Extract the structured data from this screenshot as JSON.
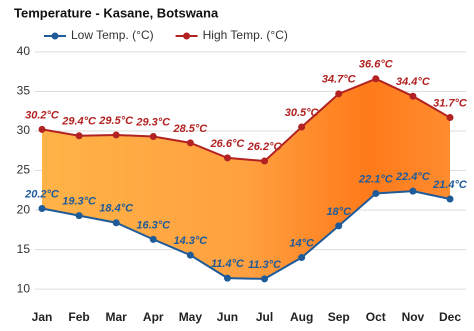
{
  "chart_data": {
    "type": "range-line",
    "title": "Temperature - Kasane, Botswana",
    "categories": [
      "Jan",
      "Feb",
      "Mar",
      "Apr",
      "May",
      "Jun",
      "Jul",
      "Aug",
      "Sep",
      "Oct",
      "Nov",
      "Dec"
    ],
    "series": [
      {
        "name": "Low Temp. (°C)",
        "color": "#1f5b99",
        "values": [
          20.2,
          19.3,
          18.4,
          16.3,
          14.3,
          11.4,
          11.3,
          14,
          18,
          22.1,
          22.4,
          21.4
        ],
        "value_labels": [
          "20.2°C",
          "19.3°C",
          "18.4°C",
          "16.3°C",
          "14.3°C",
          "11.4°C",
          "11.3°C",
          "14°C",
          "18°C",
          "22.1°C",
          "22.4°C",
          "21.4°C"
        ]
      },
      {
        "name": "High Temp. (°C)",
        "color": "#b22222",
        "values": [
          30.2,
          29.4,
          29.5,
          29.3,
          28.5,
          26.6,
          26.2,
          30.5,
          34.7,
          36.6,
          34.4,
          31.7
        ],
        "value_labels": [
          "30.2°C",
          "29.4°C",
          "29.5°C",
          "29.3°C",
          "28.5°C",
          "26.6°C",
          "26.2°C",
          "30.5°C",
          "34.7°C",
          "36.6°C",
          "34.4°C",
          "31.7°C"
        ]
      }
    ],
    "ylim": [
      8,
      41
    ],
    "yticks": [
      10,
      15,
      20,
      25,
      30,
      35,
      40
    ],
    "grid": true
  }
}
